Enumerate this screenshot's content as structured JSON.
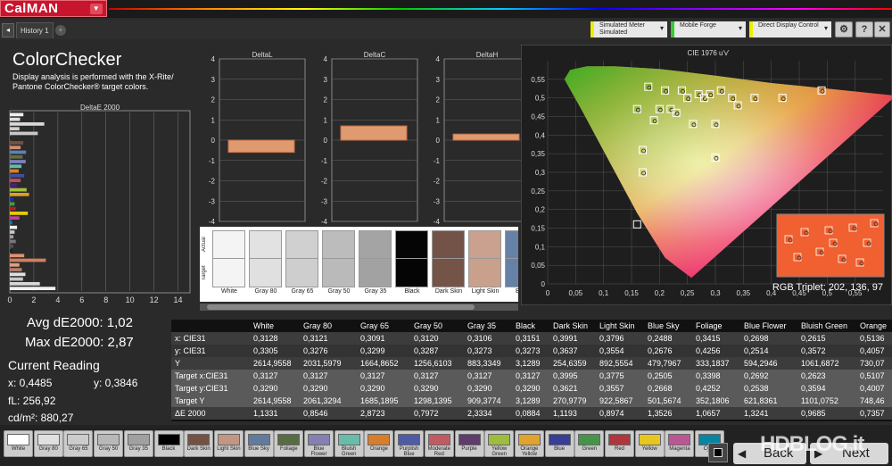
{
  "app": {
    "logo": "CalMAN",
    "history_tab": "History 1",
    "tab_add": "+",
    "tab_nav": "◂"
  },
  "toolbar": {
    "meter": {
      "line1": "Simulated Meter",
      "line2": "Simulated"
    },
    "forge": {
      "line1": "Mobile Forge"
    },
    "display": {
      "line1": "Direct Display Control"
    },
    "gear": "⚙",
    "help": "?",
    "close": "✕"
  },
  "page": {
    "title": "ColorChecker",
    "description": "Display analysis is performed with the X-Rite/ Pantone ColorChecker® target colors."
  },
  "de2000_chart": {
    "title": "DeltaE 2000",
    "xticks": [
      "0",
      "2",
      "4",
      "6",
      "8",
      "10",
      "12",
      "14"
    ],
    "xlim": [
      0,
      15
    ],
    "bars": [
      {
        "color": "#f0f0f0",
        "value": 1.13
      },
      {
        "color": "#e0e0e0",
        "value": 0.85
      },
      {
        "color": "#d8d8d8",
        "value": 2.87
      },
      {
        "color": "#cfcfcf",
        "value": 0.8
      },
      {
        "color": "#c8c8c8",
        "value": 2.33
      },
      {
        "color": "#222222",
        "value": 0.09
      },
      {
        "color": "#7a5040",
        "value": 1.12
      },
      {
        "color": "#c89078",
        "value": 0.9
      },
      {
        "color": "#6080b0",
        "value": 1.35
      },
      {
        "color": "#607040",
        "value": 1.07
      },
      {
        "color": "#8080c0",
        "value": 1.32
      },
      {
        "color": "#60c0b0",
        "value": 0.97
      },
      {
        "color": "#e08020",
        "value": 0.74
      },
      {
        "color": "#4050a0",
        "value": 1.2
      },
      {
        "color": "#c05060",
        "value": 0.9
      },
      {
        "color": "#502070",
        "value": 0.6
      },
      {
        "color": "#a0c040",
        "value": 1.4
      },
      {
        "color": "#e0a020",
        "value": 1.6
      },
      {
        "color": "#2030a0",
        "value": 0.3
      },
      {
        "color": "#40a040",
        "value": 0.4
      },
      {
        "color": "#b02020",
        "value": 0.5
      },
      {
        "color": "#e0d000",
        "value": 1.5
      },
      {
        "color": "#c040a0",
        "value": 0.8
      },
      {
        "color": "#0080b0",
        "value": 0.2
      },
      {
        "color": "#f0f0f0",
        "value": 0.6
      },
      {
        "color": "#c8c8c8",
        "value": 0.4
      },
      {
        "color": "#a0a0a0",
        "value": 0.3
      },
      {
        "color": "#787878",
        "value": 0.5
      },
      {
        "color": "#505050",
        "value": 0.3
      },
      {
        "color": "#222222",
        "value": 0.2
      },
      {
        "color": "#e09070",
        "value": 1.2
      },
      {
        "color": "#d08060",
        "value": 3.0
      },
      {
        "color": "#e0a080",
        "value": 0.8
      },
      {
        "color": "#b08070",
        "value": 1.0
      },
      {
        "color": "#e0e0e0",
        "value": 1.3
      },
      {
        "color": "#c8c8c8",
        "value": 1.1
      },
      {
        "color": "#d8d8d8",
        "value": 2.5
      },
      {
        "color": "#f0f0f0",
        "value": 3.8
      }
    ]
  },
  "delta_charts": [
    {
      "title": "DeltaL",
      "ticks": [
        "4",
        "3",
        "2",
        "1",
        "0",
        "-1",
        "-2",
        "-3",
        "-4"
      ],
      "value": -0.6
    },
    {
      "title": "DeltaC",
      "ticks": [
        "4",
        "3",
        "2",
        "1",
        "0",
        "-1",
        "-2",
        "-3",
        "-4"
      ],
      "value": 0.7
    },
    {
      "title": "DeltaH",
      "ticks": [
        "4",
        "3",
        "2",
        "1",
        "0",
        "-1",
        "-2",
        "-3",
        "-4"
      ],
      "value": 0.3
    }
  ],
  "swatches": {
    "actual_label": "Actual",
    "target_label": "Target",
    "items": [
      {
        "label": "White",
        "actual": "#f4f4f4",
        "target": "#f4f4f4"
      },
      {
        "label": "Gray 80",
        "actual": "#e2e2e2",
        "target": "#e0e0e0"
      },
      {
        "label": "Gray 65",
        "actual": "#d0d0d0",
        "target": "#cecece"
      },
      {
        "label": "Gray 50",
        "actual": "#bcbcbc",
        "target": "#bababa"
      },
      {
        "label": "Gray 35",
        "actual": "#a4a4a4",
        "target": "#a2a2a2"
      },
      {
        "label": "Black",
        "actual": "#050505",
        "target": "#050505"
      },
      {
        "label": "Dark Skin",
        "actual": "#735347",
        "target": "#745446"
      },
      {
        "label": "Light Skin",
        "actual": "#caa18e",
        "target": "#c9a08c"
      },
      {
        "label": "Blue",
        "actual": "#6681a6",
        "target": "#6581a6"
      }
    ]
  },
  "stats": {
    "avg": "Avg dE2000: 1,02",
    "max": "Max dE2000: 2,87"
  },
  "current": {
    "title": "Current Reading",
    "x": "x: 0,4485",
    "y": "y: 0,3846",
    "fl": "fL: 256,92",
    "cdm": "cd/m²: 880,27"
  },
  "cie": {
    "title": "CIE 1976 u'v'",
    "yticks": [
      "0,55",
      "0,5",
      "0,45",
      "0,4",
      "0,35",
      "0,3",
      "0,25",
      "0,2",
      "0,15",
      "0,1",
      "0,05",
      "0"
    ],
    "xticks": [
      "0",
      "0,05",
      "0,1",
      "0,15",
      "0,2",
      "0,25",
      "0,3",
      "0,35",
      "0,4",
      "0,45",
      "0,5",
      "0,55"
    ],
    "xlim": [
      0,
      0.6
    ],
    "ylim": [
      0,
      0.6
    ],
    "targets": [
      [
        0.18,
        0.53
      ],
      [
        0.21,
        0.52
      ],
      [
        0.24,
        0.52
      ],
      [
        0.25,
        0.5
      ],
      [
        0.27,
        0.51
      ],
      [
        0.28,
        0.5
      ],
      [
        0.29,
        0.51
      ],
      [
        0.31,
        0.52
      ],
      [
        0.33,
        0.5
      ],
      [
        0.37,
        0.5
      ],
      [
        0.49,
        0.52
      ],
      [
        0.42,
        0.5
      ],
      [
        0.16,
        0.47
      ],
      [
        0.19,
        0.44
      ],
      [
        0.22,
        0.47
      ],
      [
        0.3,
        0.43
      ],
      [
        0.17,
        0.36
      ],
      [
        0.17,
        0.3
      ],
      [
        0.3,
        0.34
      ],
      [
        0.16,
        0.16
      ],
      [
        0.2,
        0.47
      ],
      [
        0.34,
        0.48
      ],
      [
        0.23,
        0.46
      ],
      [
        0.26,
        0.43
      ]
    ],
    "triplet": "RGB Triplet: 202, 136, 97"
  },
  "table": {
    "columns": [
      "",
      "White",
      "Gray 80",
      "Gray 65",
      "Gray 50",
      "Gray 35",
      "Black",
      "Dark Skin",
      "Light Skin",
      "Blue Sky",
      "Foliage",
      "Blue Flower",
      "Bluish Green",
      "Orange"
    ],
    "rows": [
      [
        "x: CIE31",
        "0,3128",
        "0,3121",
        "0,3091",
        "0,3120",
        "0,3106",
        "0,3151",
        "0,3991",
        "0,3796",
        "0,2488",
        "0,3415",
        "0,2698",
        "0,2615",
        "0,5136"
      ],
      [
        "y: CIE31",
        "0,3305",
        "0,3276",
        "0,3299",
        "0,3287",
        "0,3273",
        "0,3273",
        "0,3637",
        "0,3554",
        "0,2676",
        "0,4256",
        "0,2514",
        "0,3572",
        "0,4057"
      ],
      [
        "Y",
        "2614,9558",
        "2031,5979",
        "1664,8652",
        "1256,6103",
        "883,3349",
        "3,1289",
        "254,6359",
        "892,5554",
        "479,7967",
        "333,1837",
        "594,2946",
        "1061,6872",
        "730,07"
      ],
      [
        "Target x:CIE31",
        "0,3127",
        "0,3127",
        "0,3127",
        "0,3127",
        "0,3127",
        "0,3127",
        "0,3995",
        "0,3775",
        "0,2505",
        "0,3398",
        "0,2692",
        "0,2623",
        "0,5107"
      ],
      [
        "Target y:CIE31",
        "0,3290",
        "0,3290",
        "0,3290",
        "0,3290",
        "0,3290",
        "0,3290",
        "0,3621",
        "0,3557",
        "0,2668",
        "0,4252",
        "0,2538",
        "0,3594",
        "0,4007"
      ],
      [
        "Target Y",
        "2614,9558",
        "2061,3294",
        "1685,1895",
        "1298,1395",
        "909,3774",
        "3,1289",
        "270,9779",
        "922,5867",
        "501,5674",
        "352,1806",
        "621,8361",
        "1101,0752",
        "748,46"
      ],
      [
        "ΔE 2000",
        "1,1331",
        "0,8546",
        "2,8723",
        "0,7972",
        "2,3334",
        "0,0884",
        "1,1193",
        "0,8974",
        "1,3526",
        "1,0657",
        "1,3241",
        "0,9685",
        "0,7357"
      ]
    ]
  },
  "patches": [
    {
      "label": "White",
      "color": "#ffffff"
    },
    {
      "label": "Gray 80",
      "color": "#e0e0e0"
    },
    {
      "label": "Gray 65",
      "color": "#cccccc"
    },
    {
      "label": "Gray 50",
      "color": "#b8b8b8"
    },
    {
      "label": "Gray 35",
      "color": "#a0a0a0"
    },
    {
      "label": "Black",
      "color": "#000000"
    },
    {
      "label": "Dark Skin",
      "color": "#735244"
    },
    {
      "label": "Light Skin",
      "color": "#c29682"
    },
    {
      "label": "Blue Sky",
      "color": "#627a9d"
    },
    {
      "label": "Foliage",
      "color": "#576c43"
    },
    {
      "label": "Blue Flower",
      "color": "#8580b1"
    },
    {
      "label": "Bluish Green",
      "color": "#67bdaa"
    },
    {
      "label": "Orange",
      "color": "#d67e2c"
    },
    {
      "label": "Purplish Blue",
      "color": "#505ba6"
    },
    {
      "label": "Moderate Red",
      "color": "#c15a63"
    },
    {
      "label": "Purple",
      "color": "#5e3c6c"
    },
    {
      "label": "Yellow Green",
      "color": "#9dbc40"
    },
    {
      "label": "Orange Yellow",
      "color": "#e0a32e"
    },
    {
      "label": "Blue",
      "color": "#383d96"
    },
    {
      "label": "Green",
      "color": "#469449"
    },
    {
      "label": "Red",
      "color": "#af363c"
    },
    {
      "label": "Yellow",
      "color": "#e7c71f"
    },
    {
      "label": "Magenta",
      "color": "#bb5695"
    },
    {
      "label": "Cyan",
      "color": "#0885a1"
    }
  ],
  "nav": {
    "back": "Back",
    "next": "Next",
    "back_arrow": "◀",
    "next_arrow": "▶"
  },
  "watermark": "HDBLOG.it"
}
